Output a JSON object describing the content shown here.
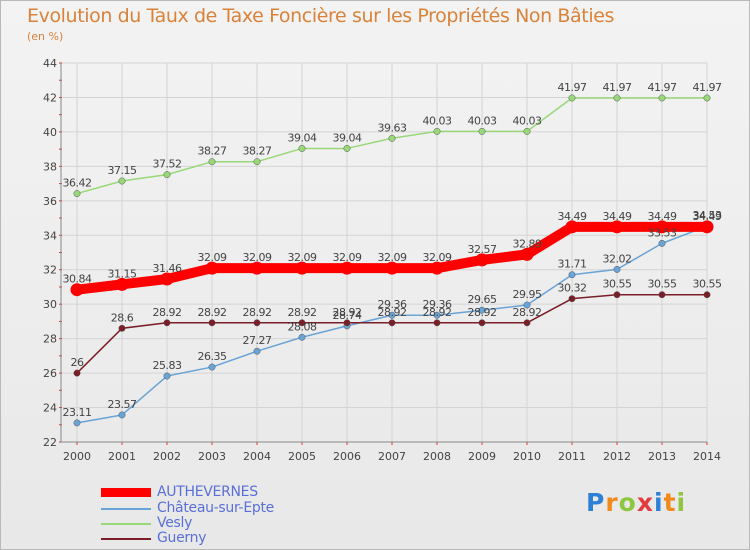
{
  "title": "Evolution du Taux de Taxe Foncière sur les Propriétés Non Bâties",
  "subtitle": "(en %)",
  "logo": {
    "letters": [
      "P",
      "r",
      "o",
      "x",
      "i",
      "t",
      "i"
    ],
    "colors": [
      "#2e7fd6",
      "#f08a1c",
      "#8fc63f",
      "#e23d3d",
      "#2e7fd6",
      "#f08a1c",
      "#8fc63f"
    ]
  },
  "chart_data": {
    "type": "line",
    "x": [
      2000,
      2001,
      2002,
      2003,
      2004,
      2005,
      2006,
      2007,
      2008,
      2009,
      2010,
      2011,
      2012,
      2013,
      2014
    ],
    "ylim": [
      22,
      44
    ],
    "yticks": [
      22,
      24,
      26,
      28,
      30,
      32,
      34,
      36,
      38,
      40,
      42,
      44
    ],
    "grid": true,
    "legend_position": "bottom-left",
    "series": [
      {
        "name": "AUTHEVERNES",
        "color": "#ff0000",
        "values": [
          30.84,
          31.15,
          31.46,
          32.09,
          32.09,
          32.09,
          32.09,
          32.09,
          32.09,
          32.57,
          32.89,
          34.49,
          34.49,
          34.49,
          34.49
        ],
        "labels": [
          "30.84",
          "31.15",
          "31.46",
          "32.09",
          "32.09",
          "32.09",
          "32.09",
          "32.09",
          "32.09",
          "32.57",
          "32.89",
          "34.49",
          "34.49",
          "34.49",
          "34.49"
        ]
      },
      {
        "name": "Château-sur-Epte",
        "color": "#6aa3d6",
        "values": [
          23.11,
          23.57,
          25.83,
          26.35,
          27.27,
          28.08,
          28.74,
          29.36,
          29.36,
          29.65,
          29.95,
          31.71,
          32.02,
          33.53,
          34.53
        ],
        "labels": [
          "23.11",
          "23.57",
          "25.83",
          "26.35",
          "27.27",
          "28.08",
          "28.74",
          "29.36",
          "29.36",
          "29.65",
          "29.95",
          "31.71",
          "32.02",
          "33.53",
          "34.53"
        ]
      },
      {
        "name": "Vesly",
        "color": "#99d878",
        "values": [
          36.42,
          37.15,
          37.52,
          38.27,
          38.27,
          39.04,
          39.04,
          39.63,
          40.03,
          40.03,
          40.03,
          41.97,
          41.97,
          41.97,
          41.97
        ],
        "labels": [
          "36.42",
          "37.15",
          "37.52",
          "38.27",
          "38.27",
          "39.04",
          "39.04",
          "39.63",
          "40.03",
          "40.03",
          "40.03",
          "41.97",
          "41.97",
          "41.97",
          "41.97"
        ]
      },
      {
        "name": "Guerny",
        "color": "#7a1e28",
        "values": [
          26.0,
          28.6,
          28.92,
          28.92,
          28.92,
          28.92,
          28.92,
          28.92,
          28.92,
          28.92,
          28.92,
          30.32,
          30.55,
          30.55,
          30.55
        ],
        "labels": [
          "26",
          "28.6",
          "28.92",
          "28.92",
          "28.92",
          "28.92",
          "28.92",
          "28.92",
          "28.92",
          "28.92",
          "28.92",
          "30.32",
          "30.55",
          "30.55",
          "30.55"
        ]
      }
    ]
  }
}
